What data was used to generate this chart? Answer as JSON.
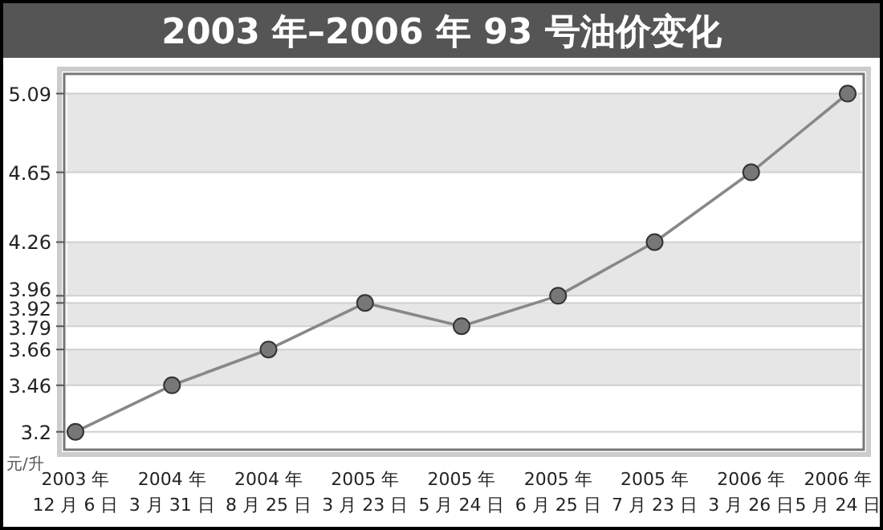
{
  "chart_data": {
    "type": "line",
    "title": "2003 年–2006 年 93 号油价变化",
    "ylabel": "元/升",
    "categories": [
      "2003 年\n12 月 6 日",
      "2004 年\n3 月 31 日",
      "2004 年\n8 月 25 日",
      "2005 年\n3 月 23 日",
      "2005 年\n5 月 24 日",
      "2005 年\n6 月 25 日",
      "2005 年\n7 月 23 日",
      "2006 年\n3 月 26 日",
      "2006 年\n5 月 24 日"
    ],
    "series": [
      {
        "color": "#888888",
        "values": [
          3.2,
          3.46,
          3.66,
          3.92,
          3.79,
          3.96,
          4.26,
          4.65,
          5.09
        ]
      }
    ],
    "ylim": [
      3.1,
      5.2
    ],
    "yticks": [
      3.2,
      3.46,
      3.66,
      3.79,
      3.92,
      3.96,
      4.26,
      4.65,
      5.09
    ],
    "grid": "y",
    "marker": "circle",
    "line_style": "solid"
  }
}
